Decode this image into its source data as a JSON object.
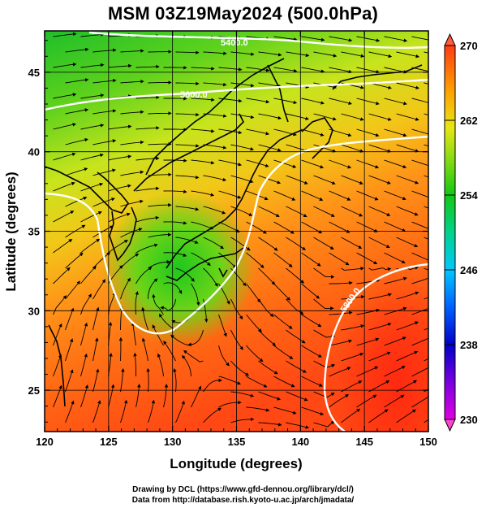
{
  "title": "MSM 03Z19May2024 (500.0hPa)",
  "xaxis": {
    "label": "Longitude (degrees)",
    "range": [
      120,
      150
    ],
    "ticks": [
      120,
      125,
      130,
      135,
      140,
      145,
      150
    ]
  },
  "yaxis": {
    "label": "Latitude  (degrees)",
    "range": [
      22.4,
      47.6
    ],
    "ticks": [
      25,
      30,
      35,
      40,
      45
    ]
  },
  "colorbar": {
    "min": 230,
    "max": 270,
    "ticks": [
      230,
      238,
      246,
      254,
      262,
      270
    ]
  },
  "contours": [
    "5400.0",
    "5600.0",
    "5800.0"
  ],
  "credits": {
    "line1": "Drawing by DCL (https://www.gfd-dennou.org/library/dcl/)",
    "line2": "Data from http://database.rish.kyoto-u.ac.jp/arch/jmadata/"
  },
  "colors": {
    "cold": "#1fbf2a",
    "mid": "#e8e81e",
    "warm": "#ff7a18",
    "hot": "#ff3a12",
    "contour": "#ffffff",
    "coast": "#000000"
  }
}
